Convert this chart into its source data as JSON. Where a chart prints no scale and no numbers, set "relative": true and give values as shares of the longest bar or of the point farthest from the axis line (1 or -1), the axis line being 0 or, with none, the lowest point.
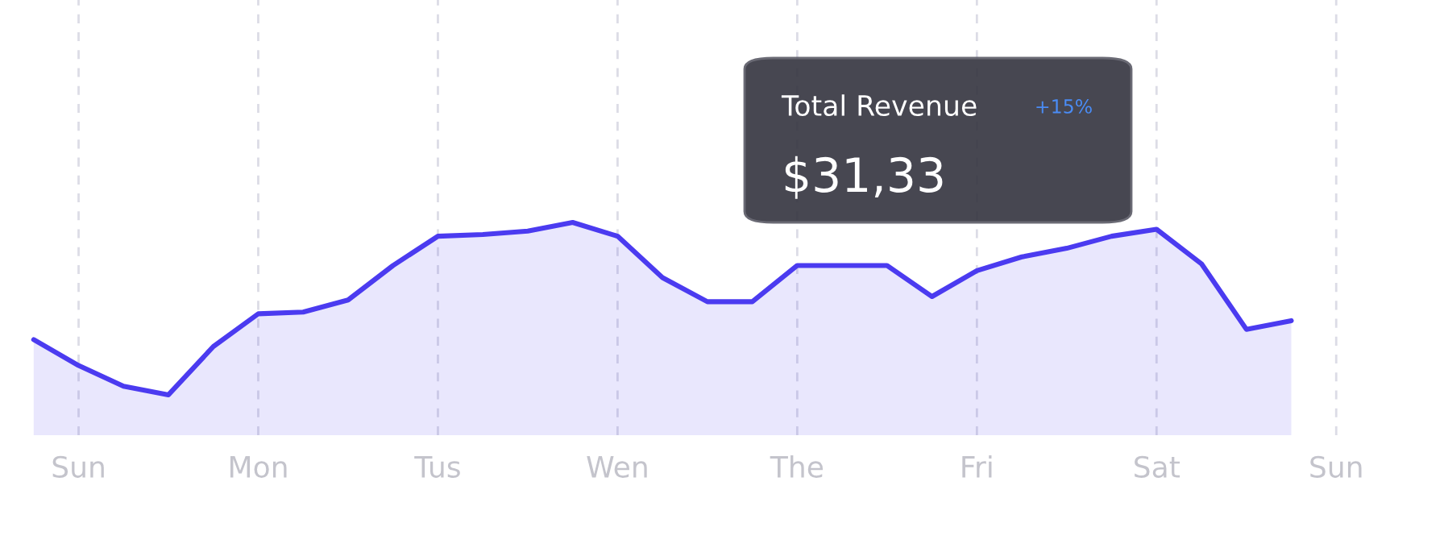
{
  "chart_data": {
    "type": "area",
    "relative": true,
    "categories": [
      null,
      "Sun",
      null,
      null,
      null,
      "Mon",
      null,
      null,
      null,
      "Tus",
      null,
      null,
      null,
      "Wen",
      null,
      null,
      null,
      "The",
      null,
      null,
      null,
      "Fri",
      null,
      null,
      null,
      "Sat",
      null,
      null,
      null,
      "Sun"
    ],
    "series": [
      {
        "color": "#4b3bf0",
        "values": [
          0.32,
          0.17,
          0.05,
          0,
          0.28,
          0.47,
          0.48,
          0.55,
          0.75,
          0.92,
          0.93,
          0.95,
          1,
          0.92,
          0.68,
          0.54,
          0.54,
          0.75,
          0.75,
          0.75,
          0.57,
          0.72,
          0.8,
          0.85,
          0.92,
          0.96,
          0.76,
          0.38,
          0.43,
          null
        ]
      }
    ],
    "grid": "x",
    "annotations": [
      "Total Revenue",
      "+15%",
      "$31,33"
    ]
  }
}
